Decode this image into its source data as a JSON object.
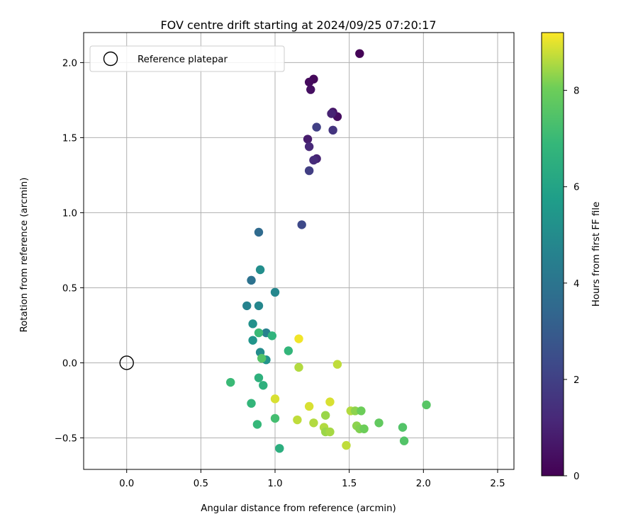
{
  "chart_data": {
    "type": "scatter",
    "title": "FOV centre drift starting at 2024/09/25 07:20:17",
    "xlabel": "Angular distance from reference (arcmin)",
    "ylabel": "Rotation from reference (arcmin)",
    "xlim": [
      -0.29,
      2.61
    ],
    "ylim": [
      -0.71,
      2.2
    ],
    "xticks": [
      0.0,
      0.5,
      1.0,
      1.5,
      2.0,
      2.5
    ],
    "xtick_labels": [
      "0.0",
      "0.5",
      "1.0",
      "1.5",
      "2.0",
      "2.5"
    ],
    "yticks": [
      -0.5,
      0.0,
      0.5,
      1.0,
      1.5,
      2.0
    ],
    "ytick_labels": [
      "−0.5",
      "0.0",
      "0.5",
      "1.0",
      "1.5",
      "2.0"
    ],
    "grid": true,
    "legend": {
      "placement": "upper-left",
      "entries": [
        "Reference platepar"
      ]
    },
    "reference_point": {
      "x": 0.0,
      "y": 0.0
    },
    "colorbar": {
      "label": "Hours from first FF file",
      "colormap": "viridis",
      "range": [
        0,
        9.2
      ],
      "ticks": [
        0,
        2,
        4,
        6,
        8
      ],
      "tick_labels": [
        "0",
        "2",
        "4",
        "6",
        "8"
      ]
    },
    "points": [
      {
        "x": 1.57,
        "y": 2.06,
        "h": 0.05
      },
      {
        "x": 1.26,
        "y": 1.89,
        "h": 0.2
      },
      {
        "x": 1.23,
        "y": 1.87,
        "h": 0.3
      },
      {
        "x": 1.24,
        "y": 1.82,
        "h": 0.4
      },
      {
        "x": 1.42,
        "y": 1.64,
        "h": 0.35
      },
      {
        "x": 1.39,
        "y": 1.67,
        "h": 0.6
      },
      {
        "x": 1.38,
        "y": 1.66,
        "h": 1.0
      },
      {
        "x": 1.28,
        "y": 1.57,
        "h": 2.0
      },
      {
        "x": 1.39,
        "y": 1.55,
        "h": 1.6
      },
      {
        "x": 1.22,
        "y": 1.49,
        "h": 0.8
      },
      {
        "x": 1.23,
        "y": 1.44,
        "h": 1.2
      },
      {
        "x": 1.28,
        "y": 1.36,
        "h": 1.0
      },
      {
        "x": 1.26,
        "y": 1.35,
        "h": 1.3
      },
      {
        "x": 1.23,
        "y": 1.28,
        "h": 1.9
      },
      {
        "x": 1.18,
        "y": 0.92,
        "h": 2.3
      },
      {
        "x": 0.89,
        "y": 0.87,
        "h": 3.6
      },
      {
        "x": 0.9,
        "y": 0.62,
        "h": 5.1
      },
      {
        "x": 0.84,
        "y": 0.55,
        "h": 3.9
      },
      {
        "x": 1.0,
        "y": 0.47,
        "h": 4.8
      },
      {
        "x": 0.81,
        "y": 0.38,
        "h": 4.6
      },
      {
        "x": 0.89,
        "y": 0.38,
        "h": 4.8
      },
      {
        "x": 0.85,
        "y": 0.26,
        "h": 5.2
      },
      {
        "x": 0.94,
        "y": 0.2,
        "h": 4.5
      },
      {
        "x": 0.98,
        "y": 0.18,
        "h": 6.7
      },
      {
        "x": 0.89,
        "y": 0.2,
        "h": 7.0
      },
      {
        "x": 0.85,
        "y": 0.15,
        "h": 5.4
      },
      {
        "x": 0.9,
        "y": 0.07,
        "h": 5.0
      },
      {
        "x": 0.94,
        "y": 0.02,
        "h": 5.3
      },
      {
        "x": 0.91,
        "y": 0.03,
        "h": 7.5
      },
      {
        "x": 1.09,
        "y": 0.08,
        "h": 6.8
      },
      {
        "x": 1.16,
        "y": 0.16,
        "h": 9.1
      },
      {
        "x": 1.16,
        "y": -0.03,
        "h": 8.6
      },
      {
        "x": 1.42,
        "y": -0.01,
        "h": 8.7
      },
      {
        "x": 0.7,
        "y": -0.13,
        "h": 7.0
      },
      {
        "x": 0.89,
        "y": -0.1,
        "h": 6.6
      },
      {
        "x": 0.92,
        "y": -0.15,
        "h": 6.6
      },
      {
        "x": 0.84,
        "y": -0.27,
        "h": 6.8
      },
      {
        "x": 1.0,
        "y": -0.24,
        "h": 8.9
      },
      {
        "x": 1.23,
        "y": -0.29,
        "h": 8.9
      },
      {
        "x": 1.37,
        "y": -0.26,
        "h": 8.9
      },
      {
        "x": 1.51,
        "y": -0.32,
        "h": 8.6
      },
      {
        "x": 1.54,
        "y": -0.32,
        "h": 8.3
      },
      {
        "x": 1.58,
        "y": -0.32,
        "h": 8.0
      },
      {
        "x": 1.34,
        "y": -0.35,
        "h": 8.4
      },
      {
        "x": 2.02,
        "y": -0.28,
        "h": 7.6
      },
      {
        "x": 1.0,
        "y": -0.37,
        "h": 7.2
      },
      {
        "x": 1.15,
        "y": -0.38,
        "h": 8.7
      },
      {
        "x": 1.26,
        "y": -0.4,
        "h": 8.6
      },
      {
        "x": 0.88,
        "y": -0.41,
        "h": 6.9
      },
      {
        "x": 1.33,
        "y": -0.43,
        "h": 8.6
      },
      {
        "x": 1.55,
        "y": -0.42,
        "h": 8.3
      },
      {
        "x": 1.57,
        "y": -0.44,
        "h": 8.2
      },
      {
        "x": 1.6,
        "y": -0.44,
        "h": 8.0
      },
      {
        "x": 1.7,
        "y": -0.4,
        "h": 7.8
      },
      {
        "x": 1.86,
        "y": -0.43,
        "h": 7.5
      },
      {
        "x": 1.34,
        "y": -0.46,
        "h": 8.4
      },
      {
        "x": 1.37,
        "y": -0.46,
        "h": 8.5
      },
      {
        "x": 1.87,
        "y": -0.52,
        "h": 7.5
      },
      {
        "x": 1.48,
        "y": -0.55,
        "h": 8.7
      },
      {
        "x": 1.03,
        "y": -0.57,
        "h": 6.5
      }
    ]
  }
}
